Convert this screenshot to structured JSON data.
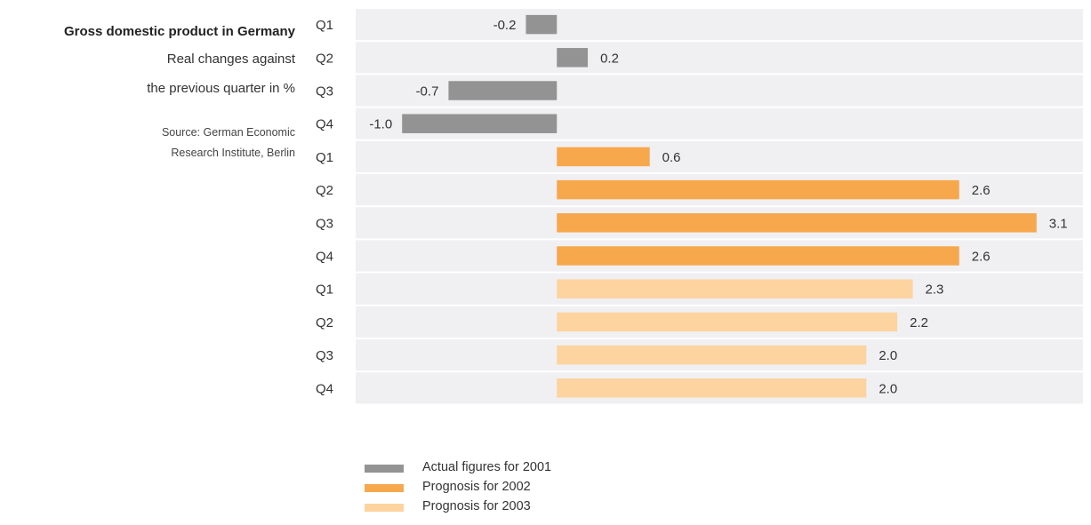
{
  "caption": {
    "title": "Gross domestic product in Germany",
    "subtitle_line1": "Real changes against",
    "subtitle_line2": "the previous quarter in %",
    "source_line1": "Source: German Economic",
    "source_line2": "Research Institute, Berlin"
  },
  "chart_data": {
    "type": "bar",
    "orientation": "horizontal",
    "title": "Gross domestic product in Germany",
    "subtitle": "Real changes against the previous quarter in %",
    "categories": [
      "Q1",
      "Q2",
      "Q3",
      "Q4",
      "Q1",
      "Q2",
      "Q3",
      "Q4",
      "Q1",
      "Q2",
      "Q3",
      "Q4"
    ],
    "values": [
      -0.2,
      0.2,
      -0.7,
      -1.0,
      0.6,
      2.6,
      3.1,
      2.6,
      2.3,
      2.2,
      2.0,
      2.0
    ],
    "value_labels": [
      "-0.2",
      "0.2",
      "-0.7",
      "-1.0",
      "0.6",
      "2.6",
      "3.1",
      "2.6",
      "2.3",
      "2.2",
      "2.0",
      "2.0"
    ],
    "group_index": [
      0,
      0,
      0,
      0,
      1,
      1,
      1,
      1,
      2,
      2,
      2,
      2
    ],
    "series": [
      {
        "name": "Actual figures for 2001",
        "color": "#939393"
      },
      {
        "name": "Prognosis for 2002",
        "color": "#f7a84c"
      },
      {
        "name": "Prognosis for 2003",
        "color": "#fdd3a0"
      }
    ],
    "xlim": [
      -1.3,
      3.4
    ],
    "grid": false,
    "legend_position": "bottom",
    "row_background_color": "#f0f0f2"
  },
  "legend": {
    "items": [
      {
        "label": "Actual figures for 2001",
        "color": "#939393"
      },
      {
        "label": "Prognosis for 2002",
        "color": "#f7a84c"
      },
      {
        "label": "Prognosis for 2003",
        "color": "#fdd3a0"
      }
    ]
  }
}
